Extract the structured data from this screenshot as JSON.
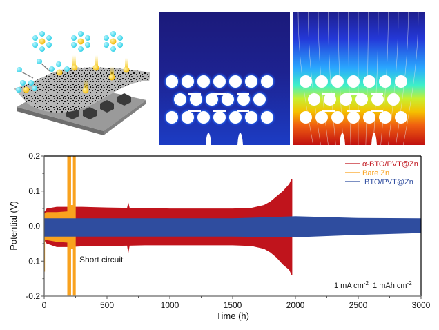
{
  "figure": {
    "top_panels": {
      "schematic": {
        "name": "zinc-anode-coating-schematic",
        "ions": [
          "Zn2+ solvated clusters",
          "Zn2+ ions"
        ]
      },
      "field_map_1": {
        "name": "electric-field-distribution",
        "colormap": "blue-to-green"
      },
      "field_map_2": {
        "name": "potential-distribution-with-streamlines",
        "colormap": "jet"
      }
    },
    "colors": {
      "red": "#c0141c",
      "orange": "#f9a21e",
      "blue": "#2f4d9f",
      "axis": "#000000",
      "axis_bottom": "#808080"
    }
  },
  "chart_data": {
    "type": "line",
    "title": "",
    "xlabel": "Time (h)",
    "ylabel": "Potential (V)",
    "xlim": [
      0,
      3000
    ],
    "ylim": [
      -0.2,
      0.2
    ],
    "xticks": [
      0,
      500,
      1000,
      1500,
      2000,
      2500,
      3000
    ],
    "xtick_labels": [
      "0",
      "500",
      "1000",
      "1500",
      "2000",
      "2500",
      "3000"
    ],
    "yticks": [
      -0.2,
      -0.1,
      0.0,
      0.1,
      0.2
    ],
    "ytick_labels": [
      "-0.2",
      "-0.1",
      "0.0",
      "0.1",
      "0.2"
    ],
    "grid": false,
    "legend": {
      "placement": "top-right"
    },
    "series": [
      {
        "name": "α-BTO/PVT@Zn",
        "color": "#c0141c",
        "style": "oscillating-envelope",
        "envelope": {
          "t": [
            0,
            20,
            100,
            200,
            300,
            500,
            660,
            670,
            680,
            800,
            1000,
            1200,
            1500,
            1650,
            1750,
            1800,
            1850,
            1900,
            1950,
            1970,
            1975
          ],
          "upper": [
            0.04,
            0.05,
            0.055,
            0.055,
            0.055,
            0.053,
            0.052,
            0.068,
            0.052,
            0.052,
            0.05,
            0.05,
            0.05,
            0.052,
            0.06,
            0.07,
            0.085,
            0.1,
            0.12,
            0.135,
            0.135
          ],
          "lower": [
            -0.04,
            -0.05,
            -0.06,
            -0.06,
            -0.058,
            -0.057,
            -0.056,
            -0.078,
            -0.056,
            -0.055,
            -0.055,
            -0.055,
            -0.055,
            -0.057,
            -0.065,
            -0.075,
            -0.09,
            -0.11,
            -0.125,
            -0.14,
            -0.14
          ]
        }
      },
      {
        "name": "Bare Zn",
        "color": "#f9a21e",
        "style": "oscillating-envelope",
        "envelope": {
          "t": [
            0,
            20,
            100,
            180,
            190
          ],
          "upper": [
            0.035,
            0.04,
            0.04,
            0.042,
            0.042
          ],
          "lower": [
            -0.04,
            -0.04,
            -0.045,
            -0.047,
            -0.047
          ]
        },
        "short_circuit_window": [
          190,
          245
        ]
      },
      {
        "name": "BTO/PVT@Zn",
        "color": "#2f4d9f",
        "style": "oscillating-envelope",
        "envelope": {
          "t": [
            0,
            500,
            1000,
            1500,
            2000,
            2500,
            3000
          ],
          "upper": [
            0.022,
            0.022,
            0.022,
            0.022,
            0.028,
            0.023,
            0.022
          ],
          "lower": [
            -0.03,
            -0.03,
            -0.03,
            -0.03,
            -0.032,
            -0.025,
            -0.02
          ]
        }
      }
    ],
    "annotations": [
      {
        "text": "Short circuit",
        "x": 280,
        "y": -0.12
      },
      {
        "text_parts": [
          "1 mA cm",
          "-2",
          "  1 mAh cm",
          "-2"
        ],
        "position": "bottom-right"
      }
    ]
  }
}
